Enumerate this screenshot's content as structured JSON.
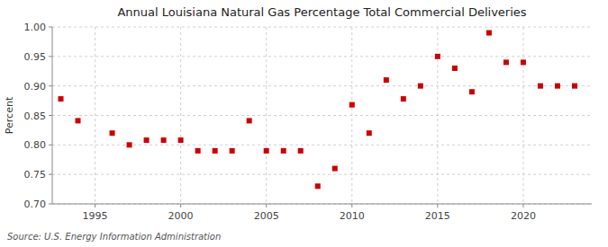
{
  "chart_data": {
    "type": "scatter",
    "title": "Annual Louisiana Natural Gas Percentage Total Commercial Deliveries",
    "ylabel": "Percent",
    "source": "Source: U.S. Energy Information Administration",
    "x": [
      1993,
      1994,
      1996,
      1997,
      1998,
      1999,
      2000,
      2001,
      2002,
      2003,
      2004,
      2005,
      2006,
      2007,
      2008,
      2009,
      2010,
      2011,
      2012,
      2013,
      2014,
      2015,
      2016,
      2017,
      2018,
      2019,
      2020,
      2021,
      2022,
      2023
    ],
    "values": [
      0.878,
      0.841,
      0.82,
      0.8,
      0.808,
      0.808,
      0.808,
      0.79,
      0.79,
      0.79,
      0.841,
      0.79,
      0.79,
      0.79,
      0.73,
      0.76,
      0.868,
      0.82,
      0.91,
      0.878,
      0.9,
      0.95,
      0.93,
      0.89,
      0.99,
      0.94,
      0.94,
      0.9,
      0.9,
      0.9
    ],
    "color": "#cc0000",
    "marker": "square",
    "xlim": [
      1992.5,
      2024
    ],
    "ylim": [
      0.7,
      1.0
    ],
    "xticks": [
      1995,
      2000,
      2005,
      2010,
      2015,
      2020
    ],
    "yticks": [
      {
        "value": 0.7,
        "label": "0.70"
      },
      0.75,
      {
        "value": 0.8,
        "label": "0.80"
      },
      0.85,
      {
        "value": 0.9,
        "label": "0.90"
      },
      0.95,
      {
        "value": 1.0,
        "label": "1.00"
      }
    ],
    "grid": true
  }
}
